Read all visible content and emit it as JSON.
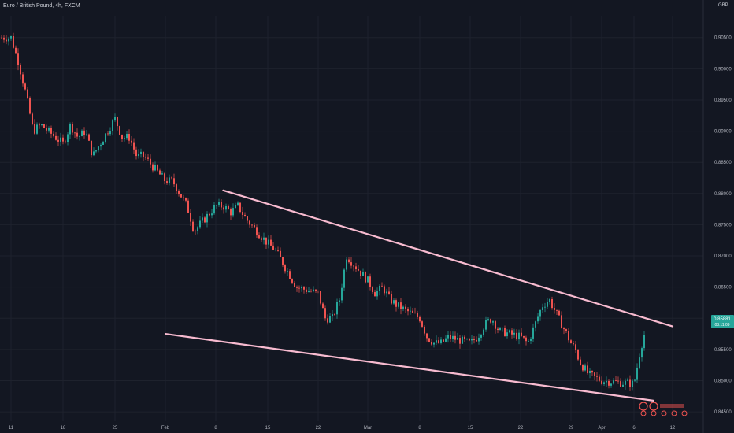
{
  "header": {
    "title": "Euro / British Pound, 4h, FXCM",
    "currency": "GBP"
  },
  "price_tag": {
    "value": "0.85881",
    "countdown": "03:11:09"
  },
  "colors": {
    "background": "#131722",
    "up": "#26a69a",
    "down": "#ef5350",
    "trendline": "#f8bbd0",
    "grid": "#1e222d",
    "axis_text": "#b2b5be"
  },
  "chart_data": {
    "type": "candlestick",
    "y_axis": {
      "range": [
        0.8435,
        0.9085
      ],
      "ticks": [
        "0.84500",
        "0.85000",
        "0.85500",
        "0.86000",
        "0.86500",
        "0.87000",
        "0.87500",
        "0.88000",
        "0.88500",
        "0.89000",
        "0.89500",
        "0.90000",
        "0.90500"
      ],
      "position": "right"
    },
    "x_axis": {
      "ticks": [
        "11",
        "18",
        "25",
        "Feb",
        "8",
        "15",
        "22",
        "Mar",
        "8",
        "15",
        "22",
        "29",
        "Apr",
        "6",
        "12"
      ]
    },
    "grid": true,
    "price_path": [
      [
        "2021-01-11",
        0.905
      ],
      [
        "2021-01-12",
        0.901
      ],
      [
        "2021-01-13",
        0.896
      ],
      [
        "2021-01-14",
        0.89
      ],
      [
        "2021-01-15",
        0.891
      ],
      [
        "2021-01-18",
        0.888
      ],
      [
        "2021-01-19",
        0.891
      ],
      [
        "2021-01-20",
        0.889
      ],
      [
        "2021-01-21",
        0.89
      ],
      [
        "2021-01-22",
        0.886
      ],
      [
        "2021-01-25",
        0.892
      ],
      [
        "2021-01-26",
        0.889
      ],
      [
        "2021-01-27",
        0.889
      ],
      [
        "2021-01-28",
        0.886
      ],
      [
        "2021-01-29",
        0.886
      ],
      [
        "2021-02-01",
        0.882
      ],
      [
        "2021-02-02",
        0.882
      ],
      [
        "2021-02-03",
        0.88
      ],
      [
        "2021-02-04",
        0.878
      ],
      [
        "2021-02-05",
        0.874
      ],
      [
        "2021-02-08",
        0.878
      ],
      [
        "2021-02-09",
        0.878
      ],
      [
        "2021-02-10",
        0.877
      ],
      [
        "2021-02-11",
        0.878
      ],
      [
        "2021-02-12",
        0.876
      ],
      [
        "2021-02-15",
        0.872
      ],
      [
        "2021-02-16",
        0.871
      ],
      [
        "2021-02-17",
        0.869
      ],
      [
        "2021-02-18",
        0.867
      ],
      [
        "2021-02-19",
        0.865
      ],
      [
        "2021-02-22",
        0.864
      ],
      [
        "2021-02-23",
        0.86
      ],
      [
        "2021-02-24",
        0.86
      ],
      [
        "2021-02-25",
        0.863
      ],
      [
        "2021-02-26",
        0.87
      ],
      [
        "2021-03-01",
        0.866
      ],
      [
        "2021-03-02",
        0.864
      ],
      [
        "2021-03-03",
        0.865
      ],
      [
        "2021-03-04",
        0.863
      ],
      [
        "2021-03-05",
        0.862
      ],
      [
        "2021-03-08",
        0.86
      ],
      [
        "2021-03-09",
        0.857
      ],
      [
        "2021-03-10",
        0.856
      ],
      [
        "2021-03-11",
        0.856
      ],
      [
        "2021-03-12",
        0.857
      ],
      [
        "2021-03-15",
        0.856
      ],
      [
        "2021-03-16",
        0.857
      ],
      [
        "2021-03-17",
        0.859
      ],
      [
        "2021-03-18",
        0.86
      ],
      [
        "2021-03-19",
        0.858
      ],
      [
        "2021-03-22",
        0.857
      ],
      [
        "2021-03-23",
        0.856
      ],
      [
        "2021-03-24",
        0.859
      ],
      [
        "2021-03-25",
        0.862
      ],
      [
        "2021-03-26",
        0.863
      ],
      [
        "2021-03-29",
        0.856
      ],
      [
        "2021-03-30",
        0.855
      ],
      [
        "2021-03-31",
        0.853
      ],
      [
        "2021-04-01",
        0.852
      ],
      [
        "2021-04-02",
        0.851
      ],
      [
        "2021-04-05",
        0.85
      ],
      [
        "2021-04-06",
        0.8495
      ],
      [
        "2021-04-07",
        0.855
      ],
      [
        "2021-04-08",
        0.859
      ]
    ],
    "trendlines": [
      {
        "name": "upper",
        "points": [
          [
            "2021-02-09",
            0.8805
          ],
          [
            "2021-04-12",
            0.8587
          ]
        ]
      },
      {
        "name": "lower",
        "points": [
          [
            "2021-02-01",
            0.8575
          ],
          [
            "2021-04-09",
            0.8468
          ]
        ]
      }
    ]
  }
}
